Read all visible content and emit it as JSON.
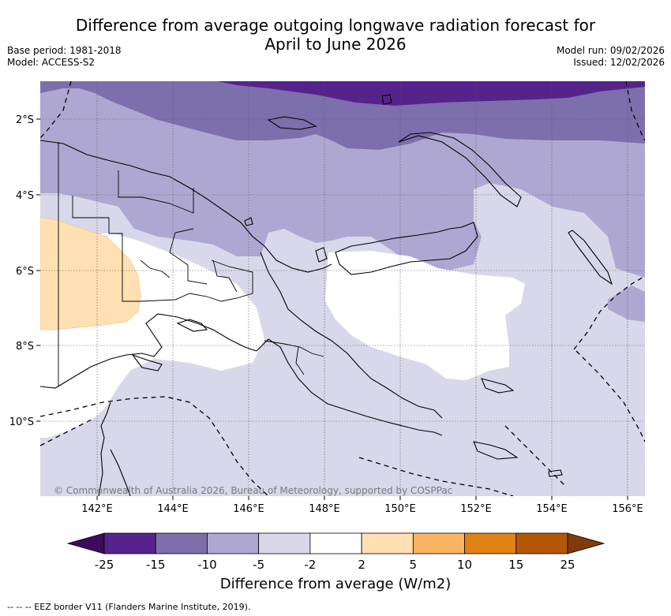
{
  "title_line1": "Difference from average outgoing longwave radiation forecast for",
  "title_line2": "April to June 2026",
  "base_period": "Base period: 1981-2018",
  "model": "Model: ACCESS-S2",
  "model_run": "Model run: 09/02/2026",
  "issued": "Issued: 12/02/2026",
  "attribution": "© Commonwealth of Australia 2026, Bureau of Meteorology, supported by COSPPac",
  "lon_ticks": [
    "142°E",
    "144°E",
    "146°E",
    "148°E",
    "150°E",
    "152°E",
    "154°E",
    "156°E"
  ],
  "lat_ticks": [
    "2°S",
    "4°S",
    "6°S",
    "8°S",
    "10°S"
  ],
  "colorbar": {
    "label": "Difference from average (W/m2)",
    "ticks": [
      "-25",
      "-15",
      "-10",
      "-5",
      "-2",
      "2",
      "5",
      "10",
      "15",
      "25"
    ],
    "colors": [
      "#3a0b5e",
      "#56238c",
      "#7d6fac",
      "#aea7d1",
      "#d8d8ea",
      "#ffffff",
      "#fee0b3",
      "#fdb462",
      "#e08214",
      "#b35806",
      "#7f3b08"
    ]
  },
  "footer": "-- -- -- EEZ border V11 (Flanders Marine Institute, 2019)."
}
